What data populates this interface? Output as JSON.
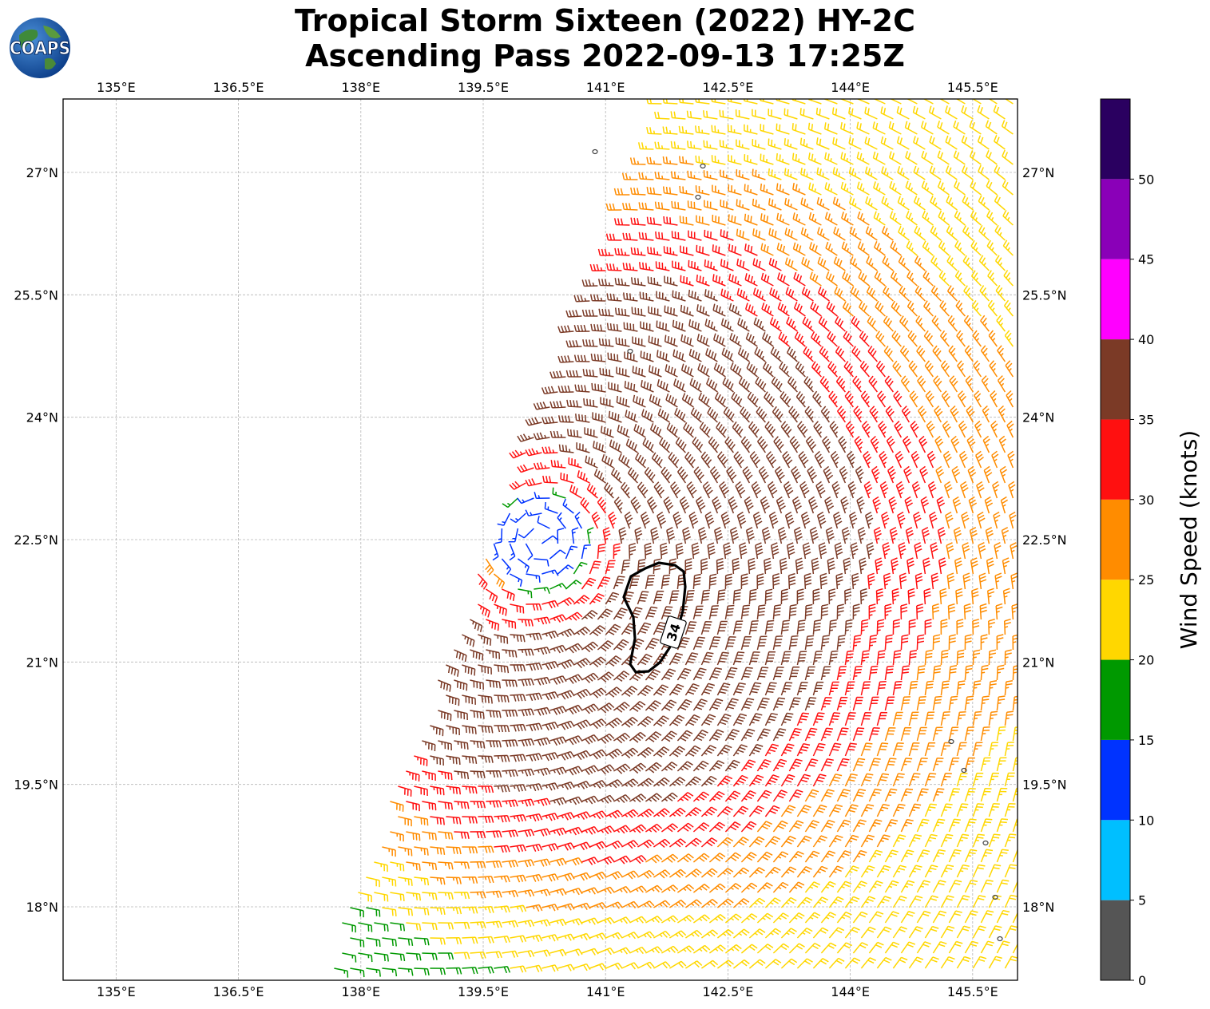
{
  "title": {
    "line1": "Tropical Storm Sixteen (2022) HY-2C",
    "line2": "Ascending Pass 2022-09-13 17:25Z"
  },
  "logo": {
    "text": "COAPS",
    "icon": "globe-logo"
  },
  "map": {
    "lon_ticks": [
      "135°E",
      "136.5°E",
      "138°E",
      "139.5°E",
      "141°E",
      "142.5°E",
      "144°E",
      "145.5°E"
    ],
    "lon_values": [
      135,
      136.5,
      138,
      139.5,
      141,
      142.5,
      144,
      145.5
    ],
    "lat_ticks": [
      "27°N",
      "25.5°N",
      "24°N",
      "22.5°N",
      "21°N",
      "19.5°N",
      "18°N"
    ],
    "lat_values": [
      27,
      25.5,
      24,
      22.5,
      21,
      19.5,
      18
    ],
    "lon_range": [
      134.35,
      146.05
    ],
    "lat_range": [
      17.1,
      27.9
    ],
    "storm_center": {
      "lon": 140.2,
      "lat": 22.5
    },
    "contour_label": "34",
    "grid": true
  },
  "colorbar": {
    "label": "Wind Speed (knots)",
    "ticks": [
      "0",
      "5",
      "10",
      "15",
      "20",
      "25",
      "30",
      "35",
      "40",
      "45",
      "50"
    ],
    "colors": [
      "#555555",
      "#00bfff",
      "#0033ff",
      "#009900",
      "#ffd700",
      "#ff8c00",
      "#ff1010",
      "#7b3a26",
      "#ff00ff",
      "#8a00b8",
      "#2a0060"
    ],
    "bounds": [
      0,
      5,
      10,
      15,
      20,
      25,
      30,
      35,
      40,
      45,
      50,
      55
    ]
  }
}
